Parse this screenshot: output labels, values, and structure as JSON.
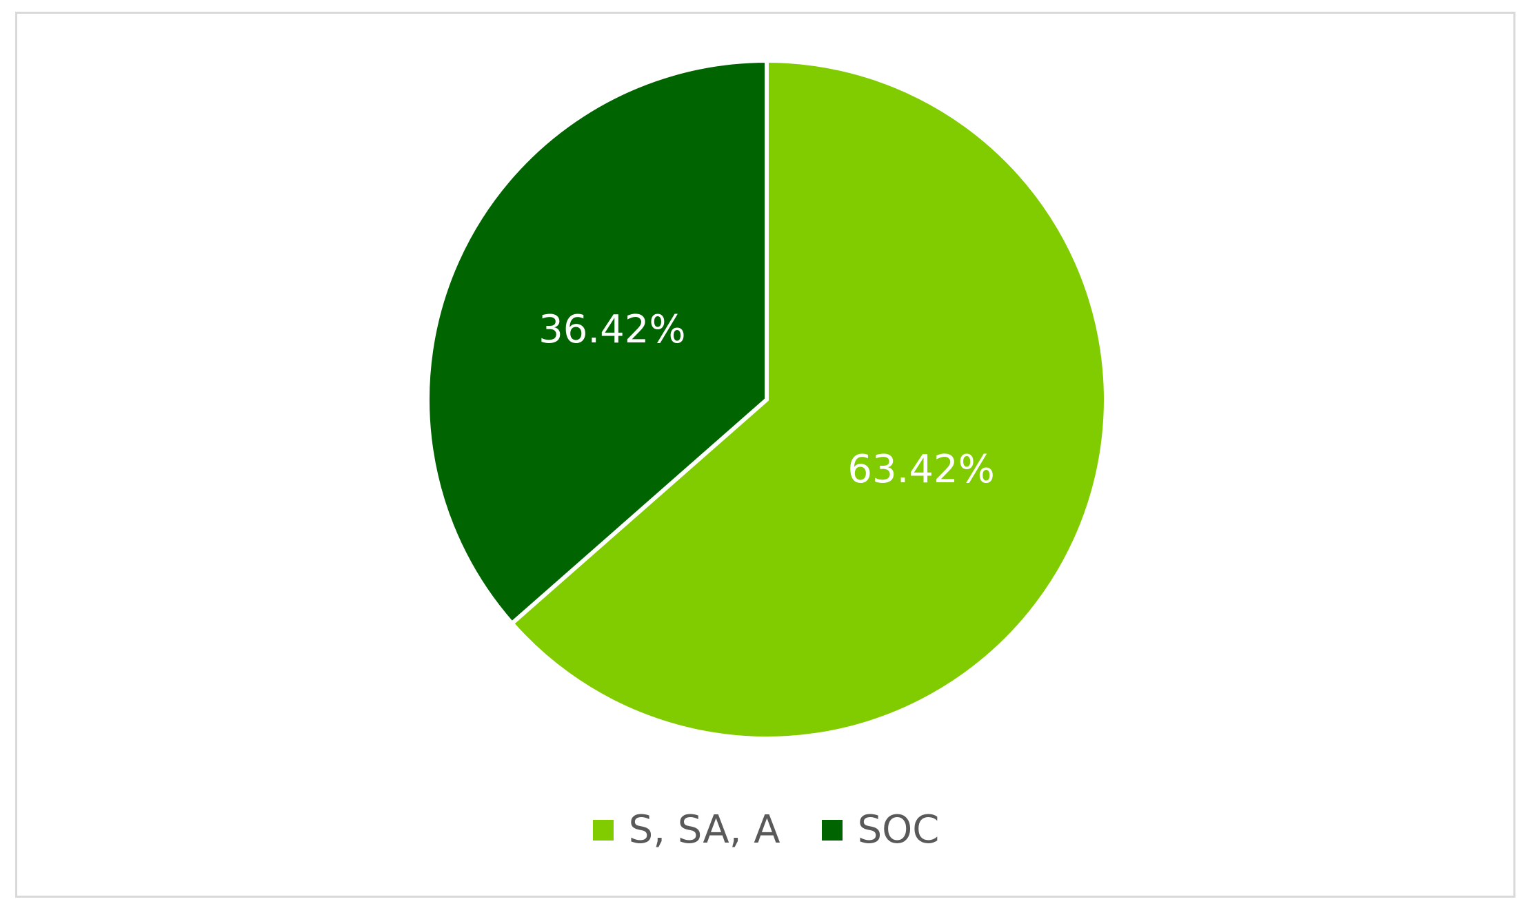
{
  "chart_data": {
    "type": "pie",
    "title": "",
    "slices": [
      {
        "name": "S, SA, A",
        "value": 63.42,
        "label": "63.42%",
        "color": "#80cc00"
      },
      {
        "name": "SOC",
        "value": 36.42,
        "label": "36.42%",
        "color": "#006400"
      }
    ],
    "start_angle_deg": 0,
    "direction": "clockwise",
    "legend_position": "bottom",
    "slice_border_color": "#ffffff"
  }
}
